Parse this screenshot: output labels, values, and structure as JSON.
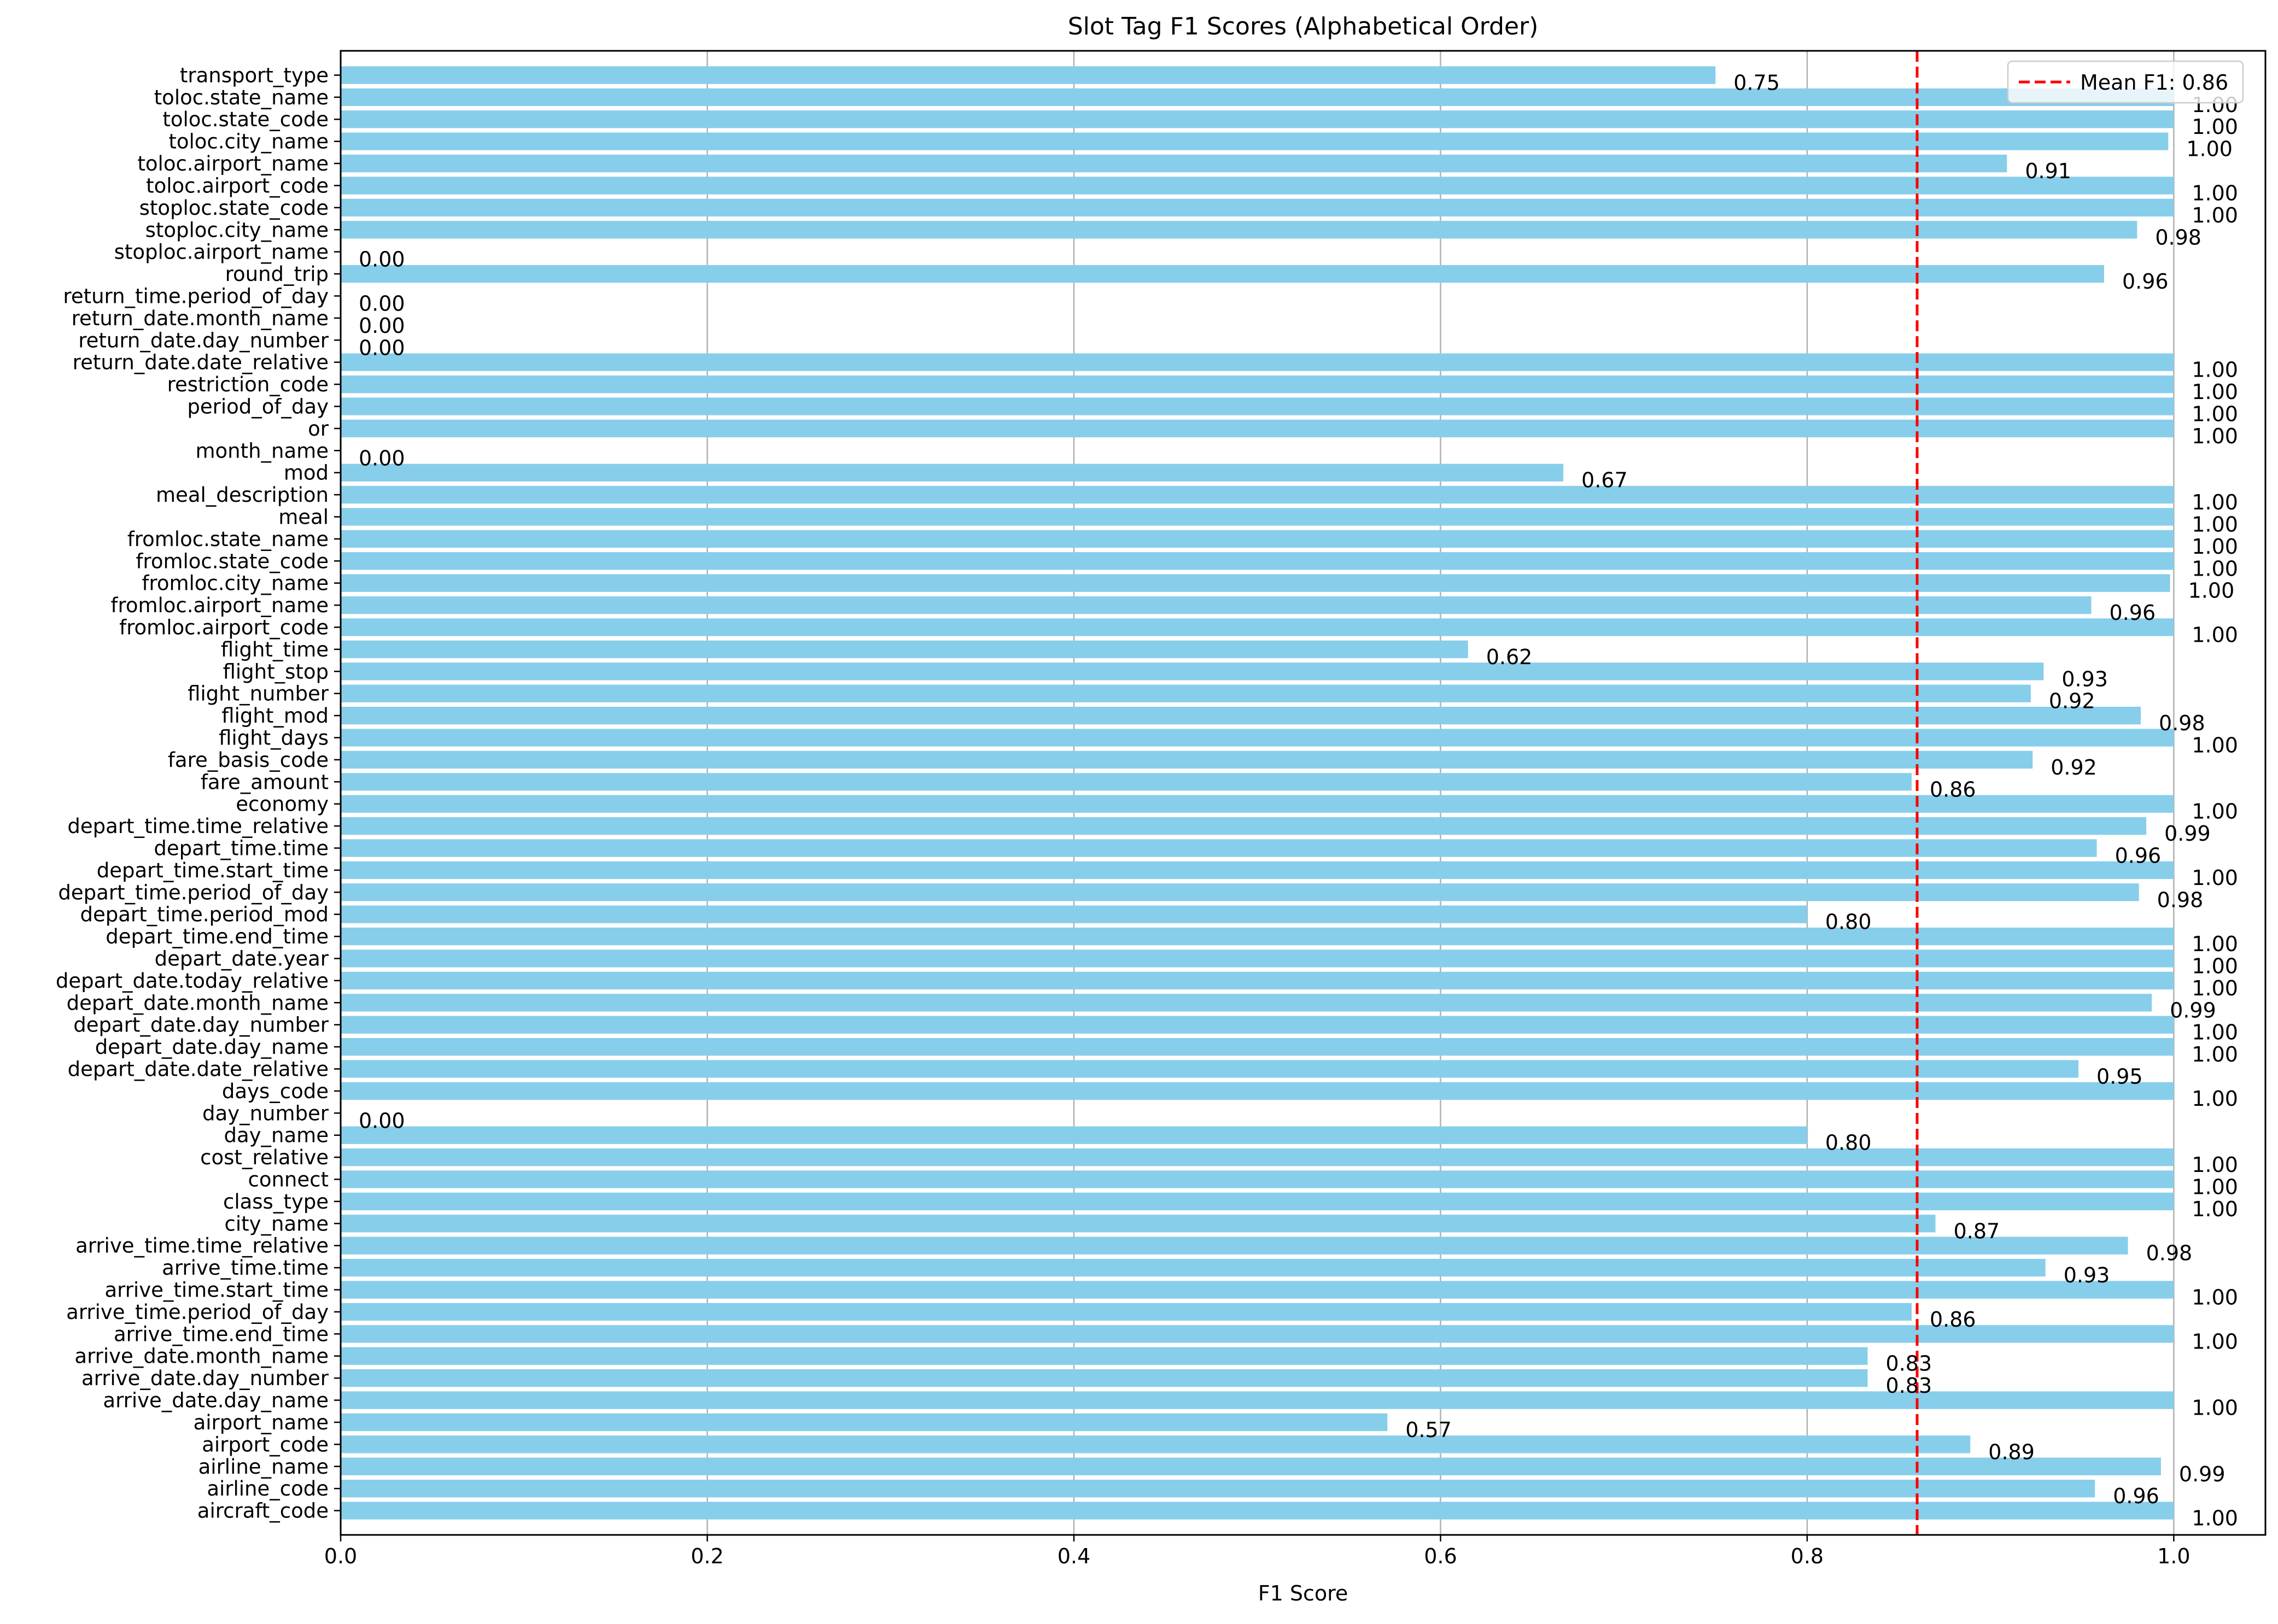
{
  "chart_data": {
    "type": "bar",
    "orientation": "horizontal",
    "title": "Slot Tag F1 Scores (Alphabetical Order)",
    "xlabel": "F1 Score",
    "ylabel": "",
    "xlim": [
      0,
      1.05
    ],
    "xticks": [
      0.0,
      0.2,
      0.4,
      0.6,
      0.8,
      1.0
    ],
    "xtick_labels": [
      "0.0",
      "0.2",
      "0.4",
      "0.6",
      "0.8",
      "1.0"
    ],
    "grid": "x",
    "legend_position": "top-right",
    "bar_color": "#87ceeb",
    "mean_line": {
      "value": 0.86,
      "label": "Mean F1: 0.86",
      "color": "#ff0000",
      "style": "dashed"
    },
    "categories": [
      "aircraft_code",
      "airline_code",
      "airline_name",
      "airport_code",
      "airport_name",
      "arrive_date.day_name",
      "arrive_date.day_number",
      "arrive_date.month_name",
      "arrive_time.end_time",
      "arrive_time.period_of_day",
      "arrive_time.start_time",
      "arrive_time.time",
      "arrive_time.time_relative",
      "city_name",
      "class_type",
      "connect",
      "cost_relative",
      "day_name",
      "day_number",
      "days_code",
      "depart_date.date_relative",
      "depart_date.day_name",
      "depart_date.day_number",
      "depart_date.month_name",
      "depart_date.today_relative",
      "depart_date.year",
      "depart_time.end_time",
      "depart_time.period_mod",
      "depart_time.period_of_day",
      "depart_time.start_time",
      "depart_time.time",
      "depart_time.time_relative",
      "economy",
      "fare_amount",
      "fare_basis_code",
      "flight_days",
      "flight_mod",
      "flight_number",
      "flight_stop",
      "flight_time",
      "fromloc.airport_code",
      "fromloc.airport_name",
      "fromloc.city_name",
      "fromloc.state_code",
      "fromloc.state_name",
      "meal",
      "meal_description",
      "mod",
      "month_name",
      "or",
      "period_of_day",
      "restriction_code",
      "return_date.date_relative",
      "return_date.day_number",
      "return_date.month_name",
      "return_time.period_of_day",
      "round_trip",
      "stoploc.airport_name",
      "stoploc.city_name",
      "stoploc.state_code",
      "toloc.airport_code",
      "toloc.airport_name",
      "toloc.city_name",
      "toloc.state_code",
      "toloc.state_name",
      "transport_type"
    ],
    "values": [
      1.0,
      0.957,
      0.993,
      0.889,
      0.571,
      1.0,
      0.833,
      0.833,
      1.0,
      0.857,
      1.0,
      0.93,
      0.975,
      0.87,
      1.0,
      1.0,
      1.0,
      0.8,
      0.0,
      1.0,
      0.948,
      1.0,
      1.0,
      0.988,
      1.0,
      1.0,
      1.0,
      0.8,
      0.981,
      1.0,
      0.958,
      0.985,
      1.0,
      0.857,
      0.923,
      1.0,
      0.982,
      0.922,
      0.929,
      0.615,
      1.0,
      0.955,
      0.998,
      1.0,
      1.0,
      1.0,
      1.0,
      0.667,
      0.0,
      1.0,
      1.0,
      1.0,
      1.0,
      0.0,
      0.0,
      0.0,
      0.962,
      0.0,
      0.98,
      1.0,
      1.0,
      0.909,
      0.997,
      1.0,
      1.0,
      0.75
    ],
    "value_labels": [
      "1.00",
      "0.96",
      "0.99",
      "0.89",
      "0.57",
      "1.00",
      "0.83",
      "0.83",
      "1.00",
      "0.86",
      "1.00",
      "0.93",
      "0.98",
      "0.87",
      "1.00",
      "1.00",
      "1.00",
      "0.80",
      "0.00",
      "1.00",
      "0.95",
      "1.00",
      "1.00",
      "0.99",
      "1.00",
      "1.00",
      "1.00",
      "0.80",
      "0.98",
      "1.00",
      "0.96",
      "0.99",
      "1.00",
      "0.86",
      "0.92",
      "1.00",
      "0.98",
      "0.92",
      "0.93",
      "0.62",
      "1.00",
      "0.96",
      "1.00",
      "1.00",
      "1.00",
      "1.00",
      "1.00",
      "0.67",
      "0.00",
      "1.00",
      "1.00",
      "1.00",
      "1.00",
      "0.00",
      "0.00",
      "0.00",
      "0.96",
      "0.00",
      "0.98",
      "1.00",
      "1.00",
      "0.91",
      "1.00",
      "1.00",
      "1.00",
      "0.75"
    ]
  }
}
